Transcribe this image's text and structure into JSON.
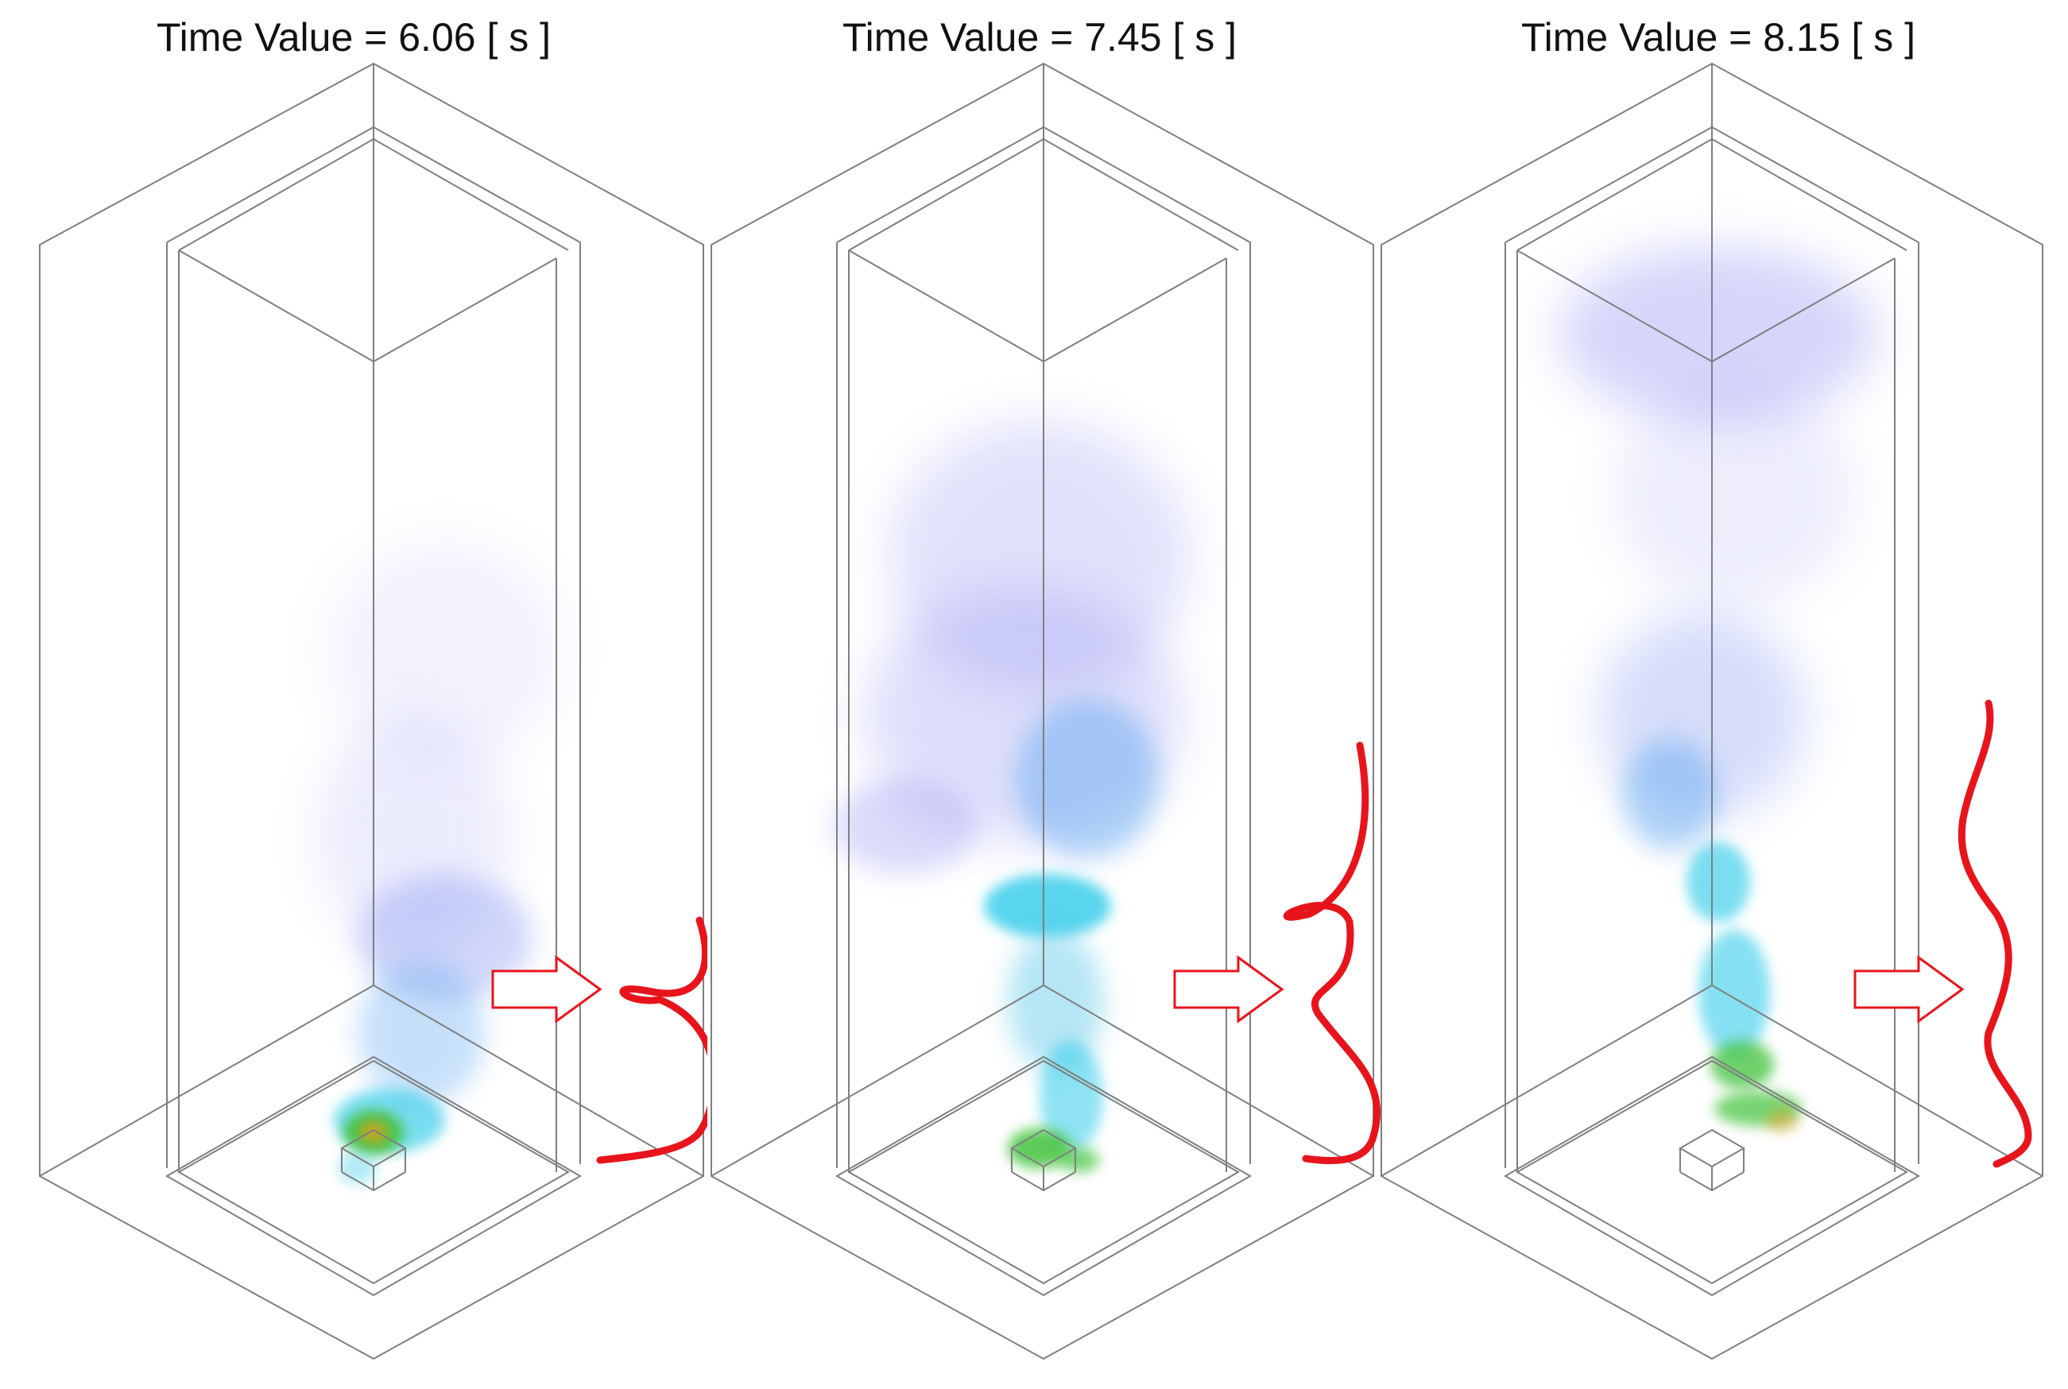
{
  "panels": [
    {
      "title": "Time Value = 6.06 [ s ]"
    },
    {
      "title": "Time Value = 7.45 [ s ]"
    },
    {
      "title": "Time Value = 8.15 [ s ]"
    }
  ],
  "colors": {
    "wireframe": "#7f7f7f",
    "annotation": "#e8141c",
    "plume_low": "#8a8cf0",
    "plume_mid": "#22c8e8",
    "plume_high": "#3fc23a",
    "plume_peak": "#d9a11c"
  }
}
